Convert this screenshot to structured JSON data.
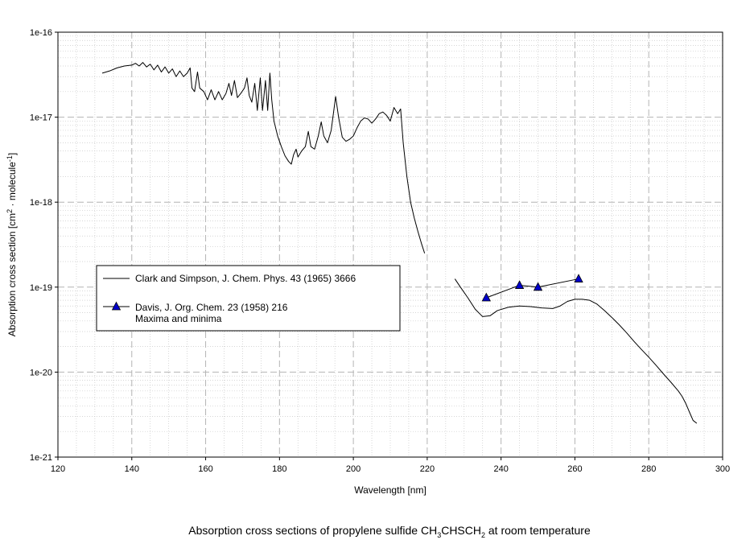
{
  "chart_data": {
    "type": "line",
    "title_parts": [
      "Absorption cross sections of propylene sulfide CH",
      "3",
      "CHSCH",
      "2",
      " at room temperature"
    ],
    "xlabel": "Wavelength [nm]",
    "ylabel_parts": [
      "Absorption cross section [cm",
      "2",
      " · molecule",
      "-1",
      "]"
    ],
    "xlim": [
      120,
      300
    ],
    "ylim": [
      1e-21,
      1e-16
    ],
    "y_scale": "log",
    "grid": "major dashed, minor dotted",
    "x_ticks": [
      120,
      140,
      160,
      180,
      200,
      220,
      240,
      260,
      280,
      300
    ],
    "x_tick_labels": [
      "120",
      "140",
      "160",
      "180",
      "200",
      "220",
      "240",
      "260",
      "280",
      "300"
    ],
    "y_ticks": [
      1e-21,
      1e-20,
      1e-19,
      1e-18,
      1e-17,
      1e-16
    ],
    "y_tick_labels": [
      "1e-21",
      "1e-20",
      "1e-19",
      "1e-18",
      "1e-17",
      "1e-16"
    ],
    "legend_position": "left-center",
    "series": [
      {
        "name": "Clark and Simpson, J. Chem. Phys. 43 (1965) 3666",
        "marker": "none",
        "color": "#000000",
        "segments": [
          [
            [
              132,
              3.3e-17
            ],
            [
              134,
              3.5e-17
            ],
            [
              136,
              3.8e-17
            ],
            [
              138,
              4e-17
            ],
            [
              140,
              4.1e-17
            ],
            [
              141,
              4.3e-17
            ],
            [
              142,
              4e-17
            ],
            [
              143,
              4.4e-17
            ],
            [
              144,
              3.9e-17
            ],
            [
              145,
              4.2e-17
            ],
            [
              146,
              3.6e-17
            ],
            [
              147,
              4.1e-17
            ],
            [
              148,
              3.4e-17
            ],
            [
              149,
              3.9e-17
            ],
            [
              150,
              3.3e-17
            ],
            [
              151,
              3.7e-17
            ],
            [
              152,
              3e-17
            ],
            [
              153,
              3.5e-17
            ],
            [
              154,
              3e-17
            ],
            [
              155,
              3.3e-17
            ],
            [
              155.8,
              3.8e-17
            ],
            [
              156.3,
              2.2e-17
            ],
            [
              157,
              2e-17
            ],
            [
              157.8,
              3.4e-17
            ],
            [
              158.4,
              2.2e-17
            ],
            [
              159.5,
              2e-17
            ],
            [
              160.5,
              1.6e-17
            ],
            [
              161.5,
              2.1e-17
            ],
            [
              162.5,
              1.6e-17
            ],
            [
              163.5,
              2e-17
            ],
            [
              164.5,
              1.6e-17
            ],
            [
              165.5,
              1.9e-17
            ],
            [
              166.3,
              2.5e-17
            ],
            [
              167,
              1.8e-17
            ],
            [
              167.8,
              2.7e-17
            ],
            [
              168.6,
              1.7e-17
            ],
            [
              169.5,
              1.9e-17
            ],
            [
              170.5,
              2.2e-17
            ],
            [
              171.2,
              2.9e-17
            ],
            [
              171.8,
              1.8e-17
            ],
            [
              172.5,
              1.5e-17
            ],
            [
              173.3,
              2.5e-17
            ],
            [
              174,
              1.2e-17
            ],
            [
              174.8,
              2.9e-17
            ],
            [
              175.4,
              1.2e-17
            ],
            [
              176.2,
              2.7e-17
            ],
            [
              176.8,
              1.2e-17
            ],
            [
              177.4,
              3.3e-17
            ],
            [
              177.9,
              1.6e-17
            ],
            [
              178.5,
              9e-18
            ],
            [
              179.5,
              6e-18
            ],
            [
              180.5,
              4.5e-18
            ],
            [
              181.5,
              3.5e-18
            ],
            [
              182.5,
              3e-18
            ],
            [
              183.2,
              2.8e-18
            ],
            [
              183.8,
              3.6e-18
            ],
            [
              184.5,
              4.2e-18
            ],
            [
              185,
              3.4e-18
            ],
            [
              186,
              4e-18
            ],
            [
              187,
              4.5e-18
            ],
            [
              187.8,
              6.8e-18
            ],
            [
              188.5,
              4.5e-18
            ],
            [
              189.5,
              4.2e-18
            ],
            [
              190.5,
              6e-18
            ],
            [
              191.3,
              8.8e-18
            ],
            [
              192,
              6e-18
            ],
            [
              193,
              5e-18
            ],
            [
              194,
              7e-18
            ],
            [
              195.2,
              1.75e-17
            ],
            [
              196,
              1e-17
            ],
            [
              197,
              5.8e-18
            ],
            [
              198,
              5.2e-18
            ],
            [
              199,
              5.5e-18
            ],
            [
              200,
              6e-18
            ],
            [
              201,
              7.5e-18
            ],
            [
              202,
              9e-18
            ],
            [
              203,
              9.8e-18
            ],
            [
              204,
              9.5e-18
            ],
            [
              205,
              8.5e-18
            ],
            [
              206,
              9.5e-18
            ],
            [
              207,
              1.1e-17
            ],
            [
              208,
              1.15e-17
            ],
            [
              209,
              1.05e-17
            ],
            [
              210,
              9e-18
            ],
            [
              211,
              1.3e-17
            ],
            [
              212,
              1.1e-17
            ],
            [
              212.8,
              1.25e-17
            ],
            [
              213.5,
              5e-18
            ],
            [
              214.5,
              2e-18
            ],
            [
              215.5,
              1e-18
            ],
            [
              216.5,
              6.5e-19
            ],
            [
              217.5,
              4.5e-19
            ],
            [
              218.5,
              3.2e-19
            ],
            [
              219.3,
              2.5e-19
            ]
          ],
          [
            [
              227.5,
              1.25e-19
            ],
            [
              229,
              1e-19
            ],
            [
              231,
              7.5e-20
            ],
            [
              233,
              5.5e-20
            ],
            [
              235,
              4.5e-20
            ],
            [
              237,
              4.6e-20
            ],
            [
              239,
              5.3e-20
            ],
            [
              242,
              5.8e-20
            ],
            [
              245,
              6e-20
            ],
            [
              248,
              5.9e-20
            ],
            [
              251,
              5.7e-20
            ],
            [
              254,
              5.6e-20
            ],
            [
              256,
              6e-20
            ],
            [
              258,
              6.8e-20
            ],
            [
              260,
              7.2e-20
            ],
            [
              262,
              7.2e-20
            ],
            [
              264,
              7e-20
            ],
            [
              266,
              6.3e-20
            ],
            [
              268,
              5.3e-20
            ],
            [
              270,
              4.4e-20
            ],
            [
              272,
              3.6e-20
            ],
            [
              274,
              2.9e-20
            ],
            [
              276,
              2.3e-20
            ],
            [
              278,
              1.85e-20
            ],
            [
              280,
              1.5e-20
            ],
            [
              282,
              1.2e-20
            ],
            [
              284,
              9.5e-21
            ],
            [
              286,
              7.6e-21
            ],
            [
              288,
              6e-21
            ],
            [
              289,
              5.2e-21
            ],
            [
              290,
              4.3e-21
            ],
            [
              291,
              3.4e-21
            ],
            [
              292,
              2.7e-21
            ],
            [
              293,
              2.5e-21
            ]
          ]
        ]
      },
      {
        "name": "Davis, J. Org. Chem. 23 (1958) 216",
        "name_line2": "Maxima and minima",
        "marker": "triangle",
        "color": "#000000",
        "marker_fill": "#0000cc",
        "x": [
          236,
          245,
          250,
          261
        ],
        "y": [
          7.5e-20,
          1.05e-19,
          1e-19,
          1.25e-19
        ]
      }
    ]
  }
}
